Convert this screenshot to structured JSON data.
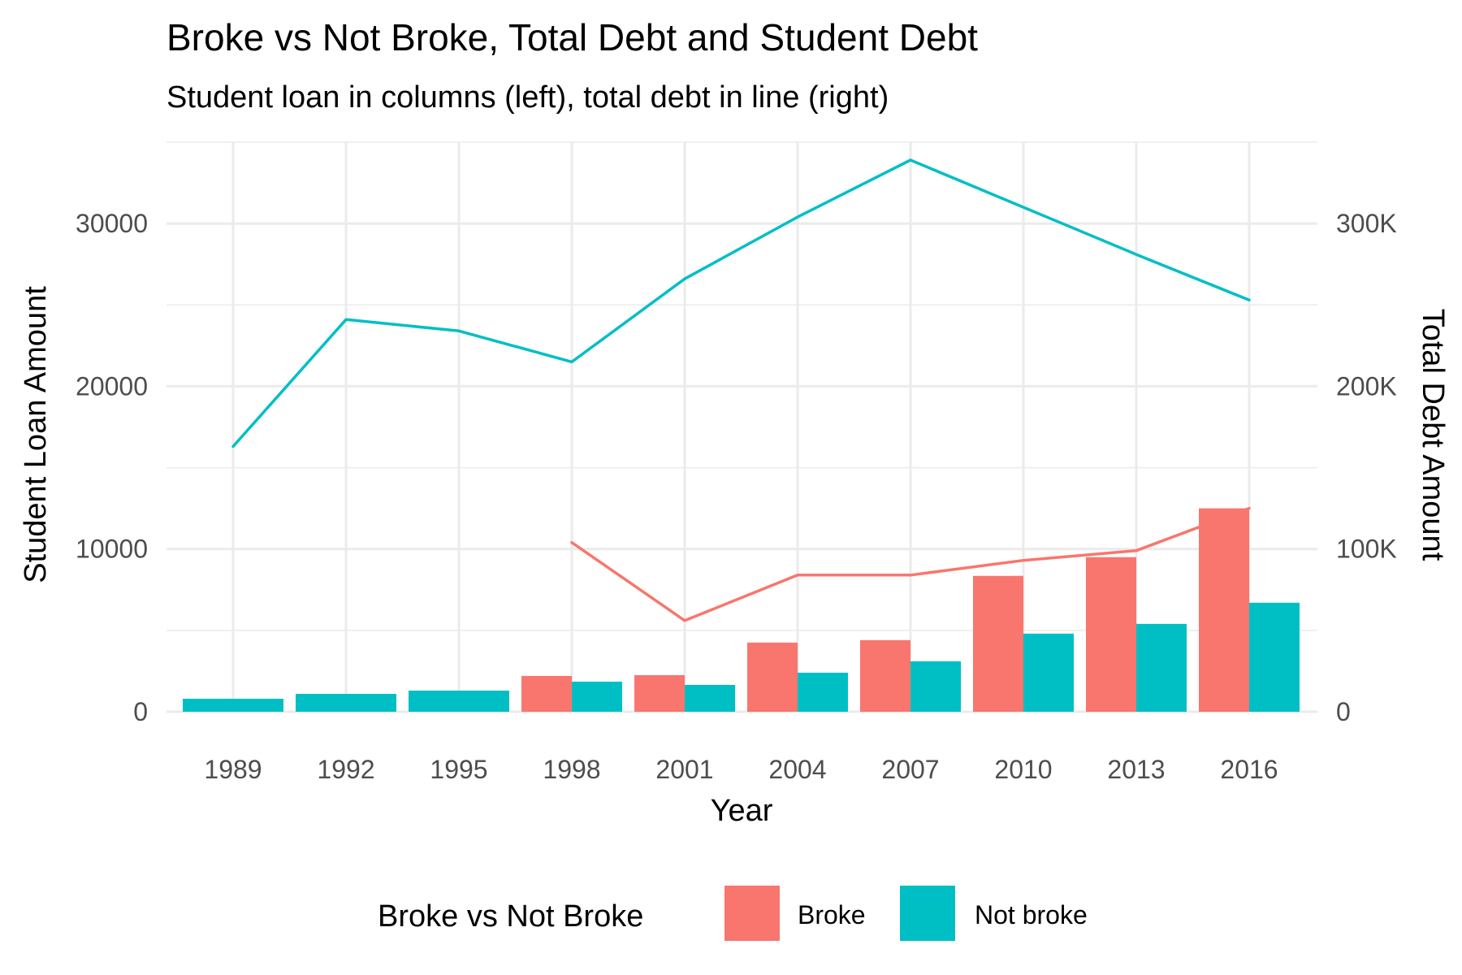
{
  "chart_data": {
    "type": "bar",
    "title": "Broke vs Not Broke, Total Debt and Student Debt",
    "subtitle": "Student loan in columns (left), total debt in line (right)",
    "xlabel": "Year",
    "ylabel": "Student Loan Amount",
    "y2label": "Total Debt Amount",
    "categories": [
      "1989",
      "1992",
      "1995",
      "1998",
      "2001",
      "2004",
      "2007",
      "2010",
      "2013",
      "2016"
    ],
    "ylim": [
      0,
      35000
    ],
    "y2lim": [
      0,
      350000
    ],
    "y_ticks": [
      0,
      10000,
      20000,
      30000
    ],
    "y_tick_labels": [
      "0",
      "10000",
      "20000",
      "30000"
    ],
    "y2_ticks": [
      0,
      100000,
      200000,
      300000
    ],
    "y2_tick_labels": [
      "0",
      "100K",
      "200K",
      "300K"
    ],
    "grid": true,
    "legend_position": "bottom",
    "legend_title": "Broke vs Not Broke",
    "bar_series": [
      {
        "name": "Broke",
        "color": "#F8766D",
        "values": [
          null,
          null,
          null,
          2200,
          2250,
          4250,
          4400,
          8350,
          9500,
          12500
        ]
      },
      {
        "name": "Not broke",
        "color": "#00BFC4",
        "values": [
          800,
          1100,
          1300,
          1850,
          1650,
          2400,
          3100,
          4800,
          5400,
          6700
        ]
      }
    ],
    "line_series": [
      {
        "name": "Broke",
        "color": "#F8766D",
        "axis": "right",
        "values": [
          null,
          null,
          null,
          104000,
          56000,
          84000,
          84000,
          93000,
          99000,
          125000
        ]
      },
      {
        "name": "Not broke",
        "color": "#00BFC4",
        "axis": "right",
        "values": [
          163000,
          241000,
          234000,
          215000,
          266000,
          304000,
          339000,
          310000,
          281000,
          253000
        ]
      }
    ]
  }
}
